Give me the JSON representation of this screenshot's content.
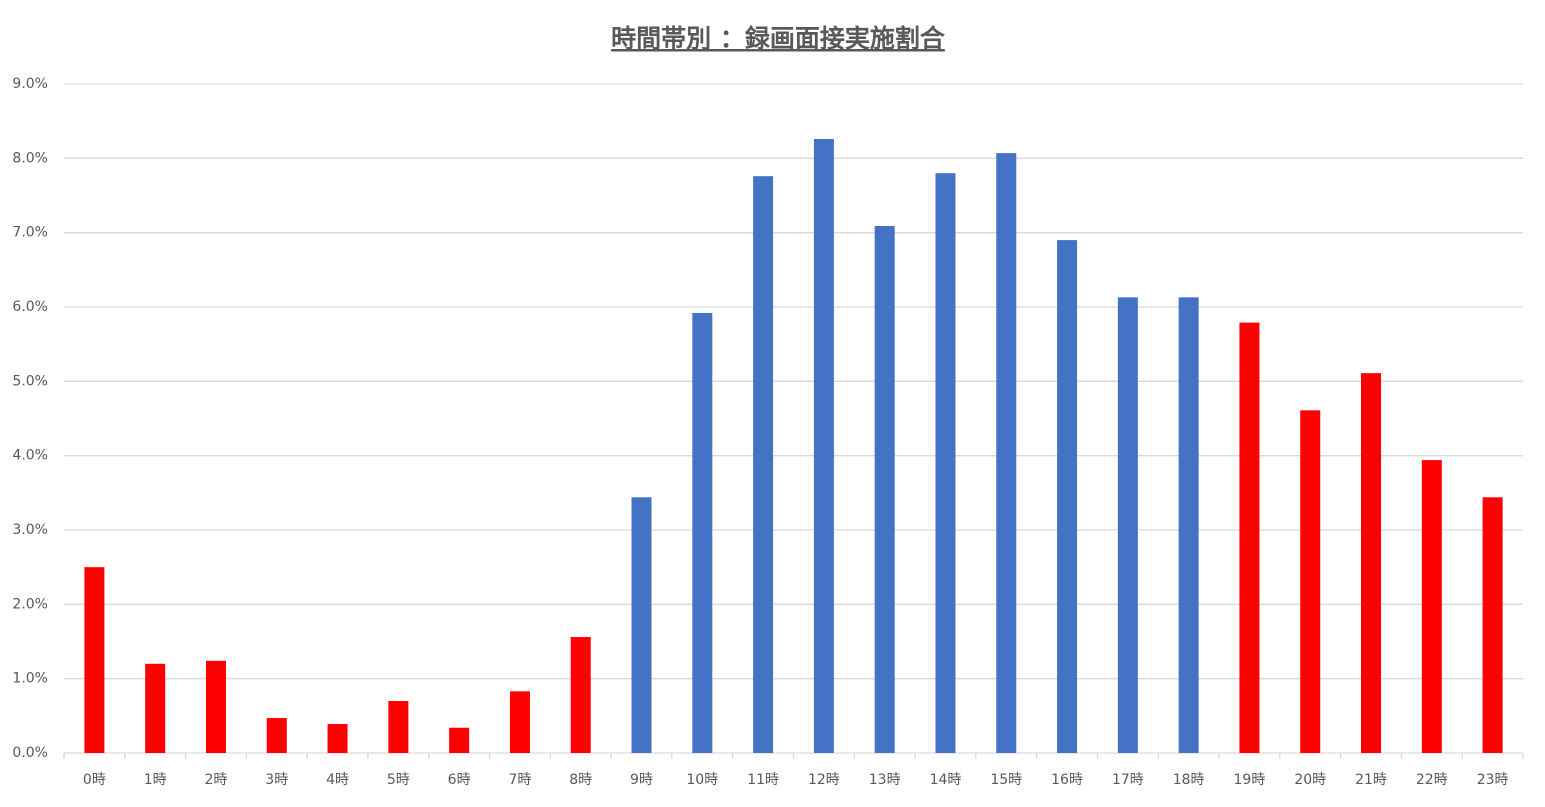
{
  "chart_data": {
    "type": "bar",
    "title": "時間帯別 ：録画面接実施割合",
    "categories": [
      "0時",
      "1時",
      "2時",
      "3時",
      "4時",
      "5時",
      "6時",
      "7時",
      "8時",
      "9時",
      "10時",
      "11時",
      "12時",
      "13時",
      "14時",
      "15時",
      "16時",
      "17時",
      "18時",
      "19時",
      "20時",
      "21時",
      "22時",
      "23時"
    ],
    "values": [
      2.5,
      1.2,
      1.24,
      0.47,
      0.39,
      0.7,
      0.34,
      0.83,
      1.56,
      3.44,
      5.92,
      7.76,
      8.26,
      7.09,
      7.8,
      8.07,
      6.9,
      6.13,
      6.13,
      5.79,
      4.61,
      5.11,
      3.94,
      3.44
    ],
    "colors": [
      "#ff0000",
      "#ff0000",
      "#ff0000",
      "#ff0000",
      "#ff0000",
      "#ff0000",
      "#ff0000",
      "#ff0000",
      "#ff0000",
      "#4472c4",
      "#4472c4",
      "#4472c4",
      "#4472c4",
      "#4472c4",
      "#4472c4",
      "#4472c4",
      "#4472c4",
      "#4472c4",
      "#4472c4",
      "#ff0000",
      "#ff0000",
      "#ff0000",
      "#ff0000",
      "#ff0000"
    ],
    "ylim": [
      0,
      9
    ],
    "yticks": [
      {
        "value": 0,
        "label": "0.0%"
      },
      {
        "value": 1,
        "label": "1.0%"
      },
      {
        "value": 2,
        "label": "2.0%"
      },
      {
        "value": 3,
        "label": "3.0%"
      },
      {
        "value": 4,
        "label": "4.0%"
      },
      {
        "value": 5,
        "label": "5.0%"
      },
      {
        "value": 6,
        "label": "6.0%"
      },
      {
        "value": 7,
        "label": "7.0%"
      },
      {
        "value": 8,
        "label": "8.0%"
      },
      {
        "value": 9,
        "label": "9.0%"
      }
    ],
    "grid": true
  }
}
